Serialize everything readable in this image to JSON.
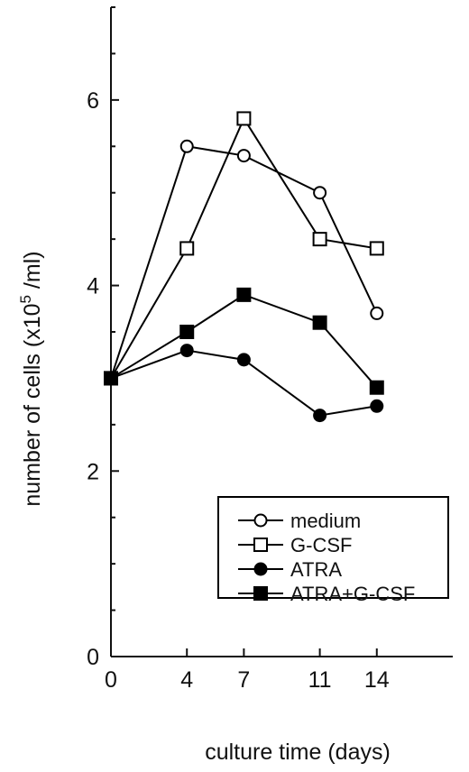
{
  "chart_data": {
    "type": "line",
    "title": "",
    "xlabel": "culture time (days)",
    "ylabel": "number of cells (x10",
    "ylabel_sup": "5",
    "ylabel_tail": " /ml)",
    "x": [
      0,
      4,
      7,
      11,
      14
    ],
    "x_ticks": [
      "0",
      "4",
      "7",
      "11",
      "14"
    ],
    "y_ticks": [
      "0",
      "2",
      "4",
      "6"
    ],
    "xlim": [
      0,
      18
    ],
    "ylim": [
      0,
      7
    ],
    "grid": false,
    "legend_position": "lower-right",
    "series": [
      {
        "name": "medium",
        "marker": "open-circle",
        "values": [
          3.0,
          5.5,
          5.4,
          5.0,
          3.7
        ]
      },
      {
        "name": "G-CSF",
        "marker": "open-square",
        "values": [
          3.0,
          4.4,
          5.8,
          4.5,
          4.4
        ]
      },
      {
        "name": "ATRA",
        "marker": "filled-circle",
        "values": [
          3.0,
          3.3,
          3.2,
          2.6,
          2.7
        ]
      },
      {
        "name": "ATRA+G-CSF",
        "marker": "filled-square",
        "values": [
          3.0,
          3.5,
          3.9,
          3.6,
          2.9
        ]
      }
    ]
  }
}
